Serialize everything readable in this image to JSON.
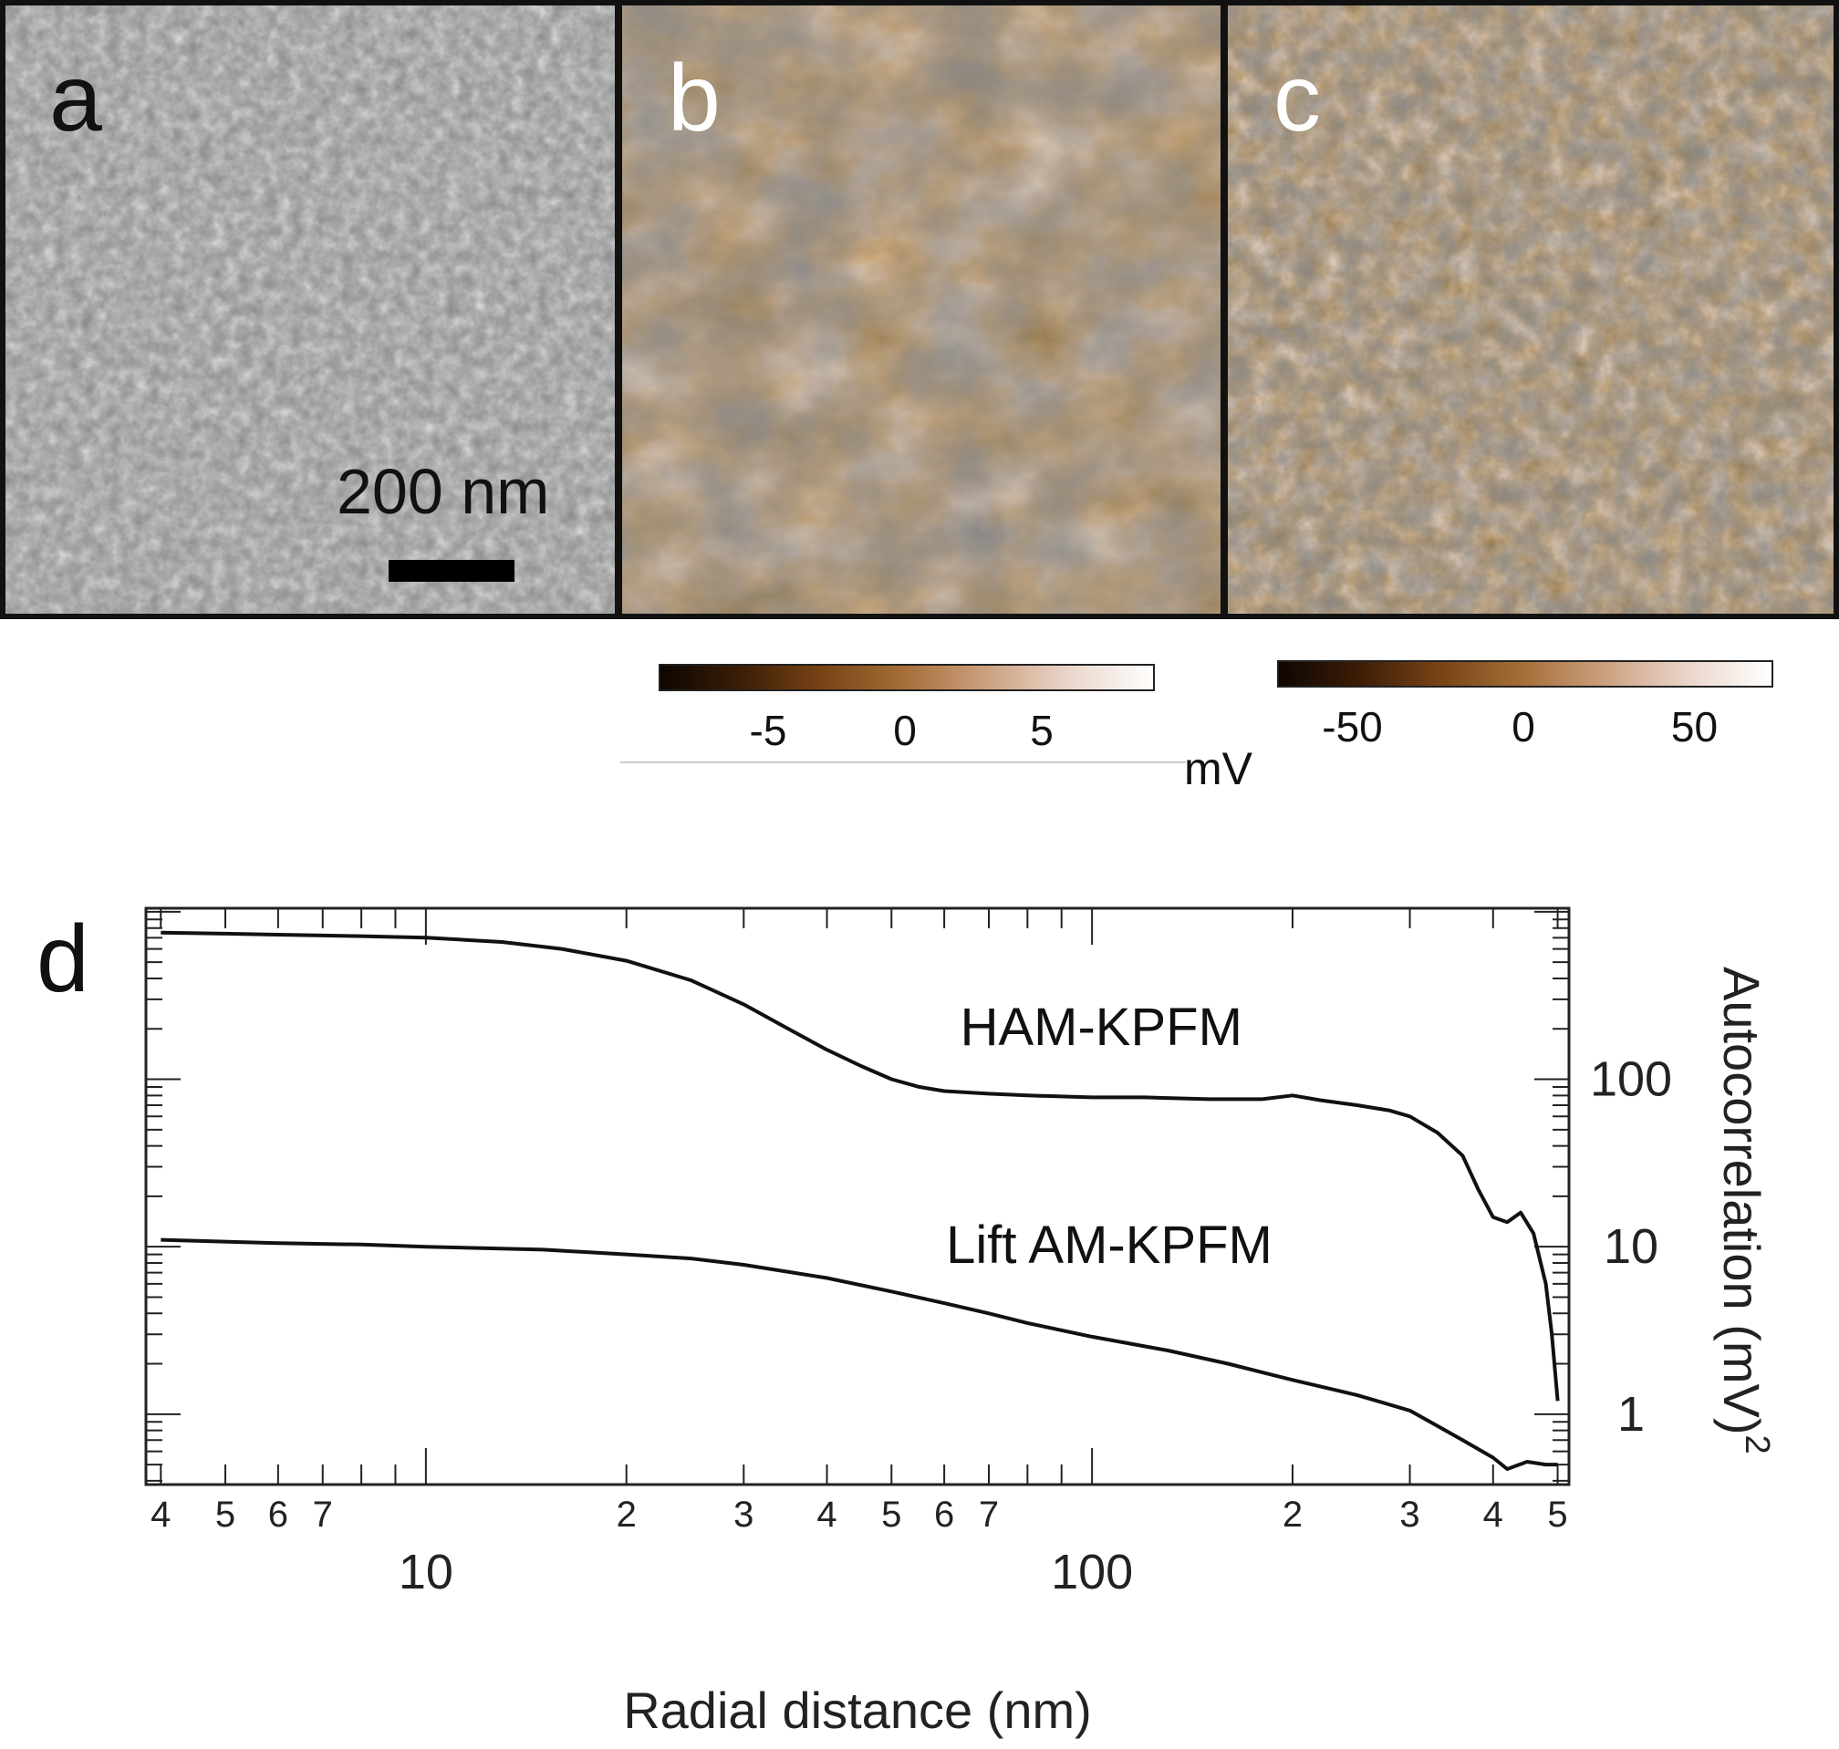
{
  "panels": {
    "a": {
      "label": "a",
      "scale_bar_label": "200 nm"
    },
    "b": {
      "label": "b"
    },
    "c": {
      "label": "c"
    }
  },
  "colorbars": {
    "b": {
      "ticks": [
        -5,
        0,
        5
      ],
      "range": [
        -9,
        9
      ]
    },
    "c": {
      "ticks": [
        -50,
        0,
        50
      ],
      "range": [
        -72,
        72
      ]
    },
    "unit": "mV"
  },
  "panel_d": {
    "label": "d"
  },
  "chart_data": {
    "type": "line",
    "title": "",
    "xlabel": "Radial distance (nm)",
    "ylabel": "Autocorrelation (mV)",
    "ylabel_superscript": "2",
    "xscale": "log",
    "yscale": "log",
    "xlim": [
      3.8,
      520
    ],
    "ylim": [
      0.38,
      1050
    ],
    "y_ticks": [
      1,
      10,
      100
    ],
    "x_major_ticks": [
      10,
      100
    ],
    "x_minor_tick_labels": [
      {
        "value": 4,
        "label": "4"
      },
      {
        "value": 5,
        "label": "5"
      },
      {
        "value": 6,
        "label": "6"
      },
      {
        "value": 7,
        "label": "7"
      },
      {
        "value": 20,
        "label": "2"
      },
      {
        "value": 30,
        "label": "3"
      },
      {
        "value": 40,
        "label": "4"
      },
      {
        "value": 50,
        "label": "5"
      },
      {
        "value": 60,
        "label": "6"
      },
      {
        "value": 70,
        "label": "7"
      },
      {
        "value": 200,
        "label": "2"
      },
      {
        "value": 300,
        "label": "3"
      },
      {
        "value": 400,
        "label": "4"
      },
      {
        "value": 500,
        "label": "5"
      }
    ],
    "series": [
      {
        "name": "HAM-KPFM",
        "x": [
          4,
          5,
          6,
          8,
          10,
          13,
          16,
          20,
          25,
          30,
          35,
          40,
          45,
          50,
          55,
          60,
          70,
          80,
          100,
          120,
          150,
          180,
          200,
          220,
          250,
          280,
          300,
          330,
          360,
          380,
          400,
          420,
          440,
          460,
          480,
          490,
          500
        ],
        "y": [
          750,
          740,
          730,
          715,
          700,
          660,
          600,
          510,
          390,
          280,
          200,
          150,
          120,
          100,
          90,
          85,
          82,
          80,
          78,
          78,
          76,
          76,
          80,
          75,
          70,
          65,
          60,
          48,
          35,
          22,
          15,
          14,
          16,
          12,
          6,
          3,
          1.2
        ]
      },
      {
        "name": "Lift AM-KPFM",
        "x": [
          4,
          6,
          8,
          10,
          15,
          20,
          25,
          30,
          40,
          50,
          60,
          70,
          80,
          100,
          130,
          160,
          200,
          250,
          300,
          330,
          360,
          400,
          420,
          450,
          480,
          500
        ],
        "y": [
          11,
          10.5,
          10.3,
          10,
          9.6,
          9,
          8.5,
          7.8,
          6.5,
          5.4,
          4.6,
          4,
          3.5,
          2.9,
          2.4,
          2,
          1.6,
          1.3,
          1.05,
          0.85,
          0.7,
          0.55,
          0.47,
          0.52,
          0.5,
          0.5
        ]
      }
    ],
    "annotations": [
      {
        "text": "HAM-KPFM",
        "x": 105,
        "y": 160
      },
      {
        "text": "Lift AM-KPFM",
        "x": 100,
        "y": 8
      }
    ]
  }
}
